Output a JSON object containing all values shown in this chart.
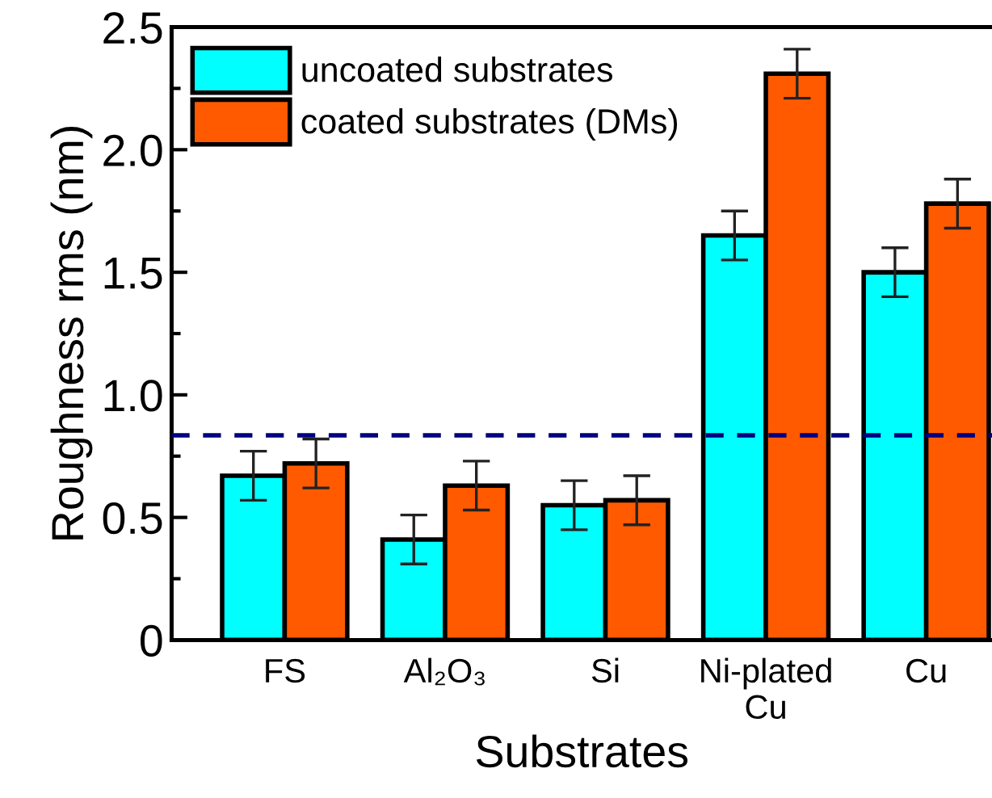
{
  "chart_data": {
    "type": "bar",
    "xlabel": "Substrates",
    "ylabel": "Roughness rms (nm)",
    "categories": [
      "FS",
      "Al₂O₃",
      "Si",
      "Ni-plated\nCu",
      "Cu"
    ],
    "series": [
      {
        "name": "uncoated substrates",
        "color": "#00ffff",
        "values": [
          0.67,
          0.41,
          0.55,
          1.65,
          1.5
        ],
        "errors": [
          0.1,
          0.1,
          0.1,
          0.1,
          0.1
        ]
      },
      {
        "name": "coated substrates (DMs)",
        "color": "#ff5a00",
        "values": [
          0.72,
          0.63,
          0.57,
          2.31,
          1.78
        ],
        "errors": [
          0.1,
          0.1,
          0.1,
          0.1,
          0.1
        ]
      }
    ],
    "ylim": [
      0,
      2.5
    ],
    "yticks": [
      {
        "value": 0,
        "label": "0"
      },
      0.5,
      {
        "value": 1,
        "label": "1.0"
      },
      1.5,
      {
        "value": 2,
        "label": "2.0"
      },
      2.5
    ],
    "ref_lines": [
      {
        "axis": "y",
        "value": 0.835,
        "color": "#000080",
        "line_style": "dashed"
      }
    ],
    "legend": "top left",
    "grid": false
  }
}
